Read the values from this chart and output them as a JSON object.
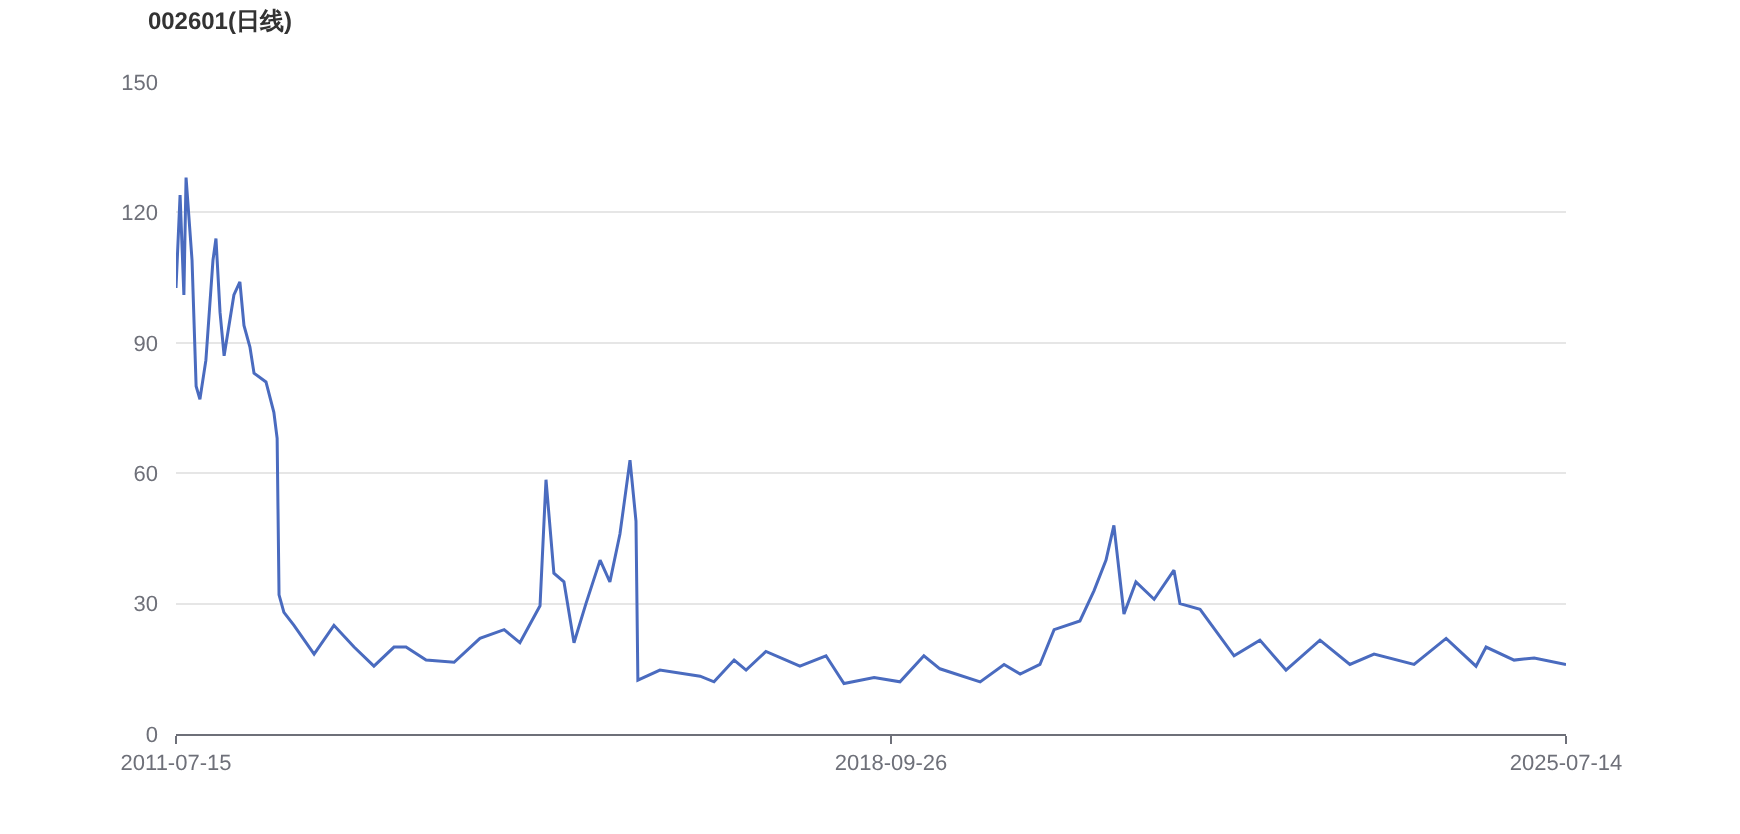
{
  "chart_data": {
    "type": "line",
    "title": "002601(日线)",
    "x": [
      "2011-07-15",
      "2011-07-30",
      "2011-08-13",
      "2011-08-21",
      "2011-09-12",
      "2011-09-27",
      "2011-10-11",
      "2011-11-02",
      "2011-11-28",
      "2011-12-09",
      "2011-12-24",
      "2012-01-08",
      "2012-02-13",
      "2012-03-06",
      "2012-03-21",
      "2012-04-12",
      "2012-04-27",
      "2012-06-10",
      "2012-07-09",
      "2012-07-21",
      "2012-07-28",
      "2012-08-15",
      "2012-09-21",
      "2012-12-04",
      "2013-02-15",
      "2013-04-30",
      "2013-07-12",
      "2013-09-24",
      "2013-11-07",
      "2014-01-20",
      "2014-05-03",
      "2014-08-06",
      "2014-11-03",
      "2014-12-31",
      "2015-03-15",
      "2015-04-06",
      "2015-05-05",
      "2015-06-11",
      "2015-07-18",
      "2015-08-31",
      "2015-10-22",
      "2015-11-27",
      "2016-01-03",
      "2016-02-09",
      "2016-03-02",
      "2016-03-09",
      "2016-05-29",
      "2016-10-24",
      "2016-12-14",
      "2017-02-26",
      "2017-04-11",
      "2017-06-23",
      "2017-09-05",
      "2017-10-26",
      "2018-01-30",
      "2018-04-06",
      "2018-07-26",
      "2018-10-29",
      "2019-01-25",
      "2019-03-25",
      "2019-08-20",
      "2019-11-16",
      "2020-01-14",
      "2020-03-27",
      "2020-05-18",
      "2020-08-21",
      "2020-10-12",
      "2020-11-25",
      "2020-12-24",
      "2021-01-30",
      "2021-03-15",
      "2021-05-21",
      "2021-08-02",
      "2021-08-24",
      "2021-11-06",
      "2022-03-11",
      "2022-06-14",
      "2022-09-18",
      "2023-01-21",
      "2023-05-11",
      "2023-08-08",
      "2024-01-02",
      "2024-04-29",
      "2024-08-17",
      "2024-09-23",
      "2025-01-04",
      "2025-03-19",
      "2025-07-14"
    ],
    "series": [
      {
        "color": "#4a6bbf",
        "values": [
          102.6,
          124,
          101,
          128,
          109,
          80,
          77,
          86,
          109,
          114,
          97,
          87,
          101,
          104,
          94,
          89,
          83,
          81,
          74,
          68,
          32,
          28,
          25,
          18.4,
          25,
          20,
          15.6,
          20,
          20,
          17,
          16.5,
          22,
          24,
          21,
          29.5,
          58.5,
          37,
          35,
          21,
          30,
          40,
          35,
          46,
          63,
          49,
          12.4,
          14.7,
          13.3,
          12,
          17,
          14.7,
          19,
          17,
          15.6,
          18,
          11.6,
          13,
          12,
          18,
          15,
          12,
          16,
          13.8,
          16,
          24,
          26,
          33,
          40,
          48,
          27.6,
          35,
          31,
          37.7,
          30,
          28.7,
          18,
          21.6,
          14.7,
          21.6,
          16,
          18.4,
          16,
          22,
          15.6,
          20,
          17,
          17.5,
          16
        ]
      }
    ],
    "xlim": [
      "2011-07-15",
      "2025-07-14"
    ],
    "xticks": [
      {
        "value": "2011-07-15",
        "label": "2011-07-15"
      },
      {
        "value": "2018-09-26",
        "label": "2018-09-26"
      },
      {
        "value": "2025-07-14",
        "label": "2025-07-14"
      }
    ],
    "ylim": [
      0,
      150
    ],
    "yticks": [
      0,
      30,
      60,
      90,
      120,
      150
    ],
    "grid": "y",
    "marker": "none",
    "line_style": "solid"
  }
}
